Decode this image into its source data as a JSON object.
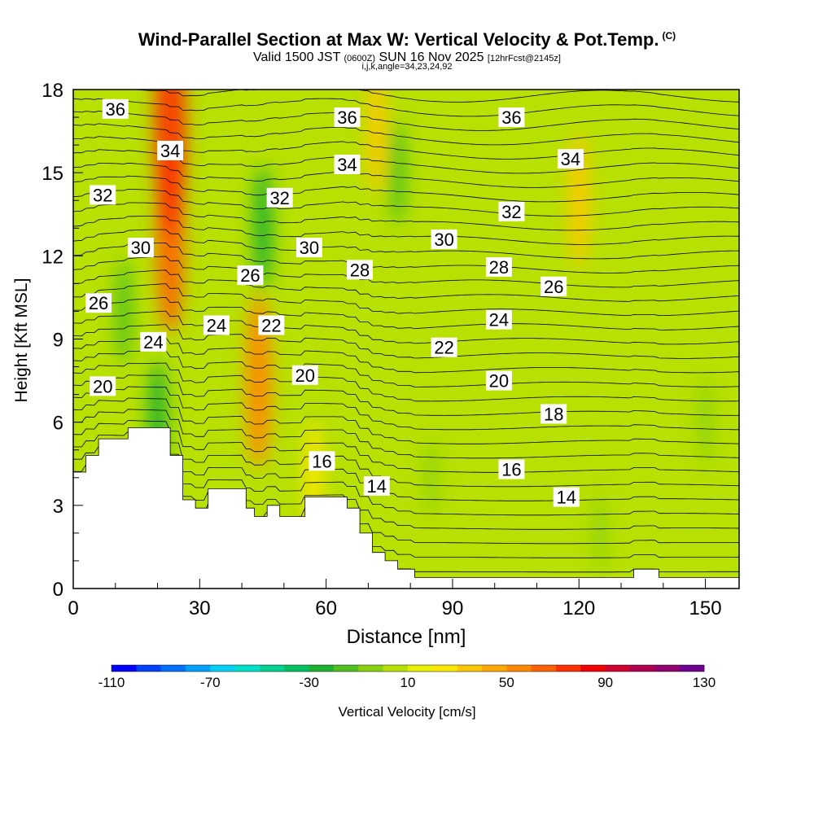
{
  "header": {
    "title": "Wind-Parallel Section at Max W: Vertical Velocity & Pot.Temp.",
    "copyright": "(C)",
    "valid_prefix": "Valid 1500 JST",
    "valid_utc": "(0600Z)",
    "valid_date": "SUN 16 Nov 2025",
    "forecast": "[12hrFcst@2145z]",
    "indices": "i,j,k,angle=34,23,24,92"
  },
  "chart_data": {
    "type": "heatmap",
    "xlabel": "Distance [nm]",
    "ylabel": "Height [Kft MSL]",
    "xlim": [
      0,
      158
    ],
    "ylim": [
      0,
      18
    ],
    "x_ticks": [
      0,
      30,
      60,
      90,
      120,
      150
    ],
    "y_ticks": [
      0,
      3,
      6,
      9,
      12,
      15,
      18
    ],
    "grid": false,
    "colorbar": {
      "label": "Vertical Velocity [cm/s]",
      "tick_labels": [
        -110,
        -70,
        -30,
        10,
        50,
        90,
        130
      ],
      "levels": [
        -110,
        -100,
        -90,
        -80,
        -70,
        -60,
        -50,
        -40,
        -30,
        -20,
        -10,
        0,
        10,
        20,
        30,
        40,
        50,
        60,
        70,
        80,
        90,
        100,
        110,
        120,
        130
      ],
      "colors": [
        "#0000ff",
        "#0040ff",
        "#0070ff",
        "#00a0ff",
        "#00d0f8",
        "#00e0c8",
        "#00d090",
        "#00c060",
        "#20b030",
        "#50c020",
        "#88d010",
        "#b8e000",
        "#e8f000",
        "#ffe800",
        "#ffc800",
        "#ffa800",
        "#ff8800",
        "#ff6000",
        "#ff3000",
        "#f00000",
        "#d00030",
        "#b00050",
        "#900070",
        "#700090"
      ]
    },
    "terrain_kft": [
      [
        0,
        4.2
      ],
      [
        3,
        4.2
      ],
      [
        3,
        4.8
      ],
      [
        6,
        4.8
      ],
      [
        6,
        5.4
      ],
      [
        13,
        5.4
      ],
      [
        13,
        5.8
      ],
      [
        23,
        5.8
      ],
      [
        23,
        4.8
      ],
      [
        26,
        4.8
      ],
      [
        26,
        3.2
      ],
      [
        29,
        3.2
      ],
      [
        29,
        2.9
      ],
      [
        32,
        2.9
      ],
      [
        32,
        3.6
      ],
      [
        41,
        3.6
      ],
      [
        41,
        2.9
      ],
      [
        43,
        2.9
      ],
      [
        43,
        2.6
      ],
      [
        46,
        2.6
      ],
      [
        46,
        3.0
      ],
      [
        49,
        3.0
      ],
      [
        49,
        2.6
      ],
      [
        55,
        2.6
      ],
      [
        55,
        3.3
      ],
      [
        65,
        3.3
      ],
      [
        65,
        2.9
      ],
      [
        68,
        2.9
      ],
      [
        68,
        2.0
      ],
      [
        71,
        2.0
      ],
      [
        71,
        1.3
      ],
      [
        74,
        1.3
      ],
      [
        74,
        1.0
      ],
      [
        77,
        1.0
      ],
      [
        77,
        0.7
      ],
      [
        81,
        0.7
      ],
      [
        81,
        0.4
      ],
      [
        133,
        0.4
      ],
      [
        133,
        0.7
      ],
      [
        139,
        0.7
      ],
      [
        139,
        0.4
      ],
      [
        158,
        0.4
      ]
    ],
    "w_features": [
      {
        "x": 23,
        "y": 12.5,
        "w_cms": 60
      },
      {
        "x": 23,
        "y": 16.5,
        "w_cms": 75
      },
      {
        "x": 44,
        "y": 7.5,
        "w_cms": 55
      },
      {
        "x": 20,
        "y": 6.0,
        "w_cms": -30
      },
      {
        "x": 12,
        "y": 10.0,
        "w_cms": -20
      },
      {
        "x": 45,
        "y": 13.0,
        "w_cms": -30
      },
      {
        "x": 77,
        "y": 15.0,
        "w_cms": -20
      },
      {
        "x": 120,
        "y": 14.0,
        "w_cms": 35
      },
      {
        "x": 72,
        "y": 16.5,
        "w_cms": 30
      },
      {
        "x": 57,
        "y": 4.0,
        "w_cms": 25
      },
      {
        "x": 85,
        "y": 4.0,
        "w_cms": -5
      },
      {
        "x": 125,
        "y": 2.0,
        "w_cms": -5
      },
      {
        "x": 150,
        "y": 6.0,
        "w_cms": -10
      }
    ],
    "theta_contour_labels": [
      {
        "text": "36",
        "x": 10,
        "y": 17.3
      },
      {
        "text": "36",
        "x": 65,
        "y": 17.0
      },
      {
        "text": "36",
        "x": 104,
        "y": 17.0
      },
      {
        "text": "34",
        "x": 23,
        "y": 15.8
      },
      {
        "text": "34",
        "x": 65,
        "y": 15.3
      },
      {
        "text": "34",
        "x": 118,
        "y": 15.5
      },
      {
        "text": "32",
        "x": 7,
        "y": 14.2
      },
      {
        "text": "32",
        "x": 49,
        "y": 14.1
      },
      {
        "text": "32",
        "x": 104,
        "y": 13.6
      },
      {
        "text": "30",
        "x": 16,
        "y": 12.3
      },
      {
        "text": "30",
        "x": 56,
        "y": 12.3
      },
      {
        "text": "30",
        "x": 88,
        "y": 12.6
      },
      {
        "text": "28",
        "x": 68,
        "y": 11.5
      },
      {
        "text": "28",
        "x": 101,
        "y": 11.6
      },
      {
        "text": "26",
        "x": 42,
        "y": 11.3
      },
      {
        "text": "26",
        "x": 6,
        "y": 10.3
      },
      {
        "text": "26",
        "x": 114,
        "y": 10.9
      },
      {
        "text": "24",
        "x": 34,
        "y": 9.5
      },
      {
        "text": "24",
        "x": 19,
        "y": 8.9
      },
      {
        "text": "24",
        "x": 101,
        "y": 9.7
      },
      {
        "text": "22",
        "x": 47,
        "y": 9.5
      },
      {
        "text": "22",
        "x": 88,
        "y": 8.7
      },
      {
        "text": "20",
        "x": 7,
        "y": 7.3
      },
      {
        "text": "20",
        "x": 55,
        "y": 7.7
      },
      {
        "text": "20",
        "x": 101,
        "y": 7.5
      },
      {
        "text": "18",
        "x": 114,
        "y": 6.3
      },
      {
        "text": "16",
        "x": 59,
        "y": 4.6
      },
      {
        "text": "16",
        "x": 104,
        "y": 4.3
      },
      {
        "text": "14",
        "x": 72,
        "y": 3.7
      },
      {
        "text": "14",
        "x": 117,
        "y": 3.3
      }
    ]
  }
}
